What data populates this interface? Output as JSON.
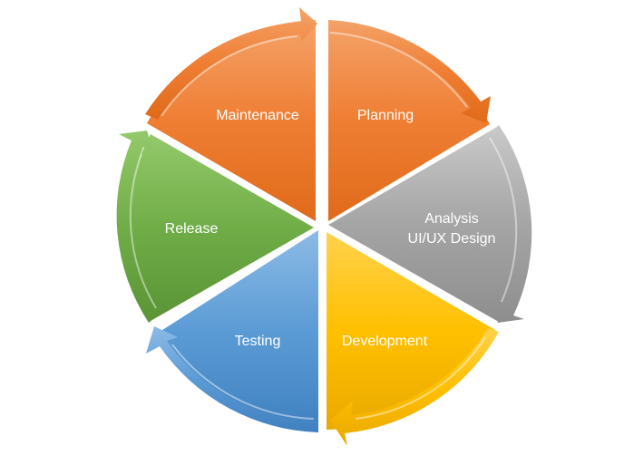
{
  "diagram": {
    "segments": [
      {
        "label": "Planning",
        "color": "#ED7D31"
      },
      {
        "label": "Analysis",
        "label2": "UI/UX Design",
        "color": "#A5A5A5"
      },
      {
        "label": "Development",
        "color": "#FFC000"
      },
      {
        "label": "Testing",
        "color": "#5B9BD5"
      },
      {
        "label": "Release",
        "color": "#70AD47"
      },
      {
        "label": "Maintenance",
        "color": "#ED7D31"
      }
    ]
  }
}
